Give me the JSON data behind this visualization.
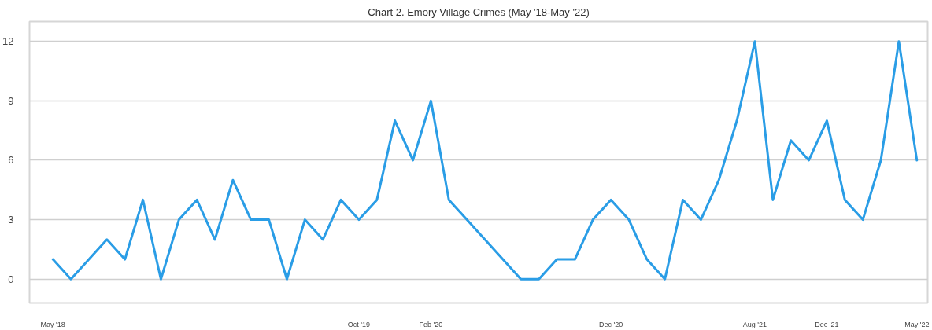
{
  "chart_data": {
    "type": "line",
    "title": "Chart 2. Emory Village Crimes (May '18-May '22)",
    "categories": [
      "May '18",
      null,
      null,
      null,
      null,
      null,
      null,
      null,
      null,
      null,
      null,
      null,
      null,
      null,
      null,
      null,
      null,
      "Oct '19",
      null,
      null,
      null,
      "Feb '20",
      null,
      null,
      null,
      null,
      null,
      null,
      null,
      null,
      null,
      "Dec '20",
      null,
      null,
      null,
      null,
      null,
      null,
      null,
      "Aug '21",
      null,
      null,
      null,
      "Dec '21",
      null,
      null,
      null,
      null,
      "May '22"
    ],
    "series": [
      {
        "color": "#2a9de6",
        "values": [
          1,
          0,
          1,
          2,
          1,
          4,
          0,
          3,
          4,
          2,
          5,
          3,
          3,
          0,
          3,
          2,
          4,
          3,
          4,
          8,
          6,
          9,
          4,
          3,
          2,
          1,
          0,
          0,
          1,
          1,
          3,
          4,
          3,
          1,
          0,
          4,
          3,
          5,
          8,
          12,
          4,
          7,
          6,
          8,
          4,
          3,
          6,
          12,
          6
        ]
      }
    ],
    "ylim": [
      -1.2,
      13
    ],
    "yticks": [
      0,
      3,
      6,
      9,
      12
    ],
    "grid": "y",
    "line_style": "solid"
  }
}
